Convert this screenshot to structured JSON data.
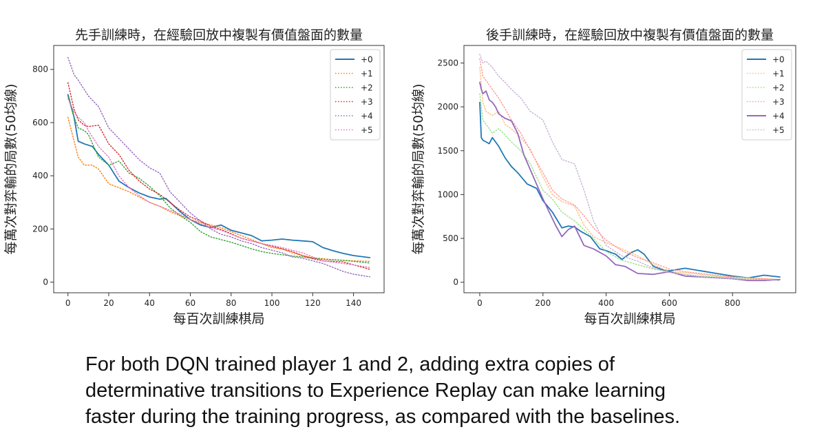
{
  "caption": {
    "line1": "For both DQN trained player 1 and 2, adding extra copies of",
    "line2": "determinative transitions to Experience Replay can make learning",
    "line3": "faster during the training progress, as compared with the baselines."
  },
  "chart_data": [
    {
      "type": "line",
      "title": "先手訓練時，在經驗回放中複製有價值盤面的數量",
      "xlabel": "每百次訓練棋局",
      "ylabel": "每萬次對弈輸的局數(50均線)",
      "xlim": [
        -7,
        155
      ],
      "ylim": [
        -40,
        890
      ],
      "xticks": [
        0,
        20,
        40,
        60,
        80,
        100,
        120,
        140
      ],
      "yticks": [
        0,
        200,
        400,
        600,
        800
      ],
      "legend_position": "top-right",
      "grid": false,
      "series": [
        {
          "name": "+0",
          "color": "#1f77b4",
          "style": "solid",
          "x": [
            0,
            3,
            5,
            8,
            12,
            15,
            20,
            25,
            30,
            35,
            40,
            45,
            48,
            55,
            60,
            65,
            70,
            75,
            80,
            85,
            90,
            95,
            100,
            105,
            110,
            115,
            120,
            125,
            130,
            135,
            140,
            148
          ],
          "y": [
            705,
            620,
            530,
            520,
            510,
            480,
            440,
            380,
            355,
            335,
            320,
            312,
            315,
            265,
            235,
            215,
            205,
            215,
            195,
            185,
            175,
            155,
            158,
            162,
            158,
            155,
            152,
            130,
            118,
            108,
            100,
            92
          ]
        },
        {
          "name": "+1",
          "color": "#ff7f0e",
          "style": "dotted",
          "x": [
            0,
            2,
            5,
            8,
            12,
            15,
            20,
            25,
            30,
            35,
            40,
            45,
            50,
            55,
            60,
            65,
            70,
            75,
            80,
            85,
            90,
            95,
            100,
            105,
            110,
            115,
            120,
            125,
            130,
            135,
            140,
            148
          ],
          "y": [
            620,
            560,
            470,
            440,
            440,
            425,
            370,
            355,
            340,
            320,
            300,
            285,
            265,
            250,
            235,
            225,
            215,
            205,
            190,
            175,
            160,
            145,
            130,
            125,
            110,
            100,
            92,
            88,
            84,
            82,
            80,
            78
          ]
        },
        {
          "name": "+2",
          "color": "#2ca02c",
          "style": "dotted",
          "x": [
            0,
            3,
            5,
            8,
            10,
            15,
            20,
            25,
            30,
            35,
            40,
            45,
            50,
            55,
            60,
            65,
            70,
            75,
            80,
            85,
            90,
            95,
            100,
            105,
            110,
            115,
            120,
            125,
            130,
            135,
            140,
            148
          ],
          "y": [
            700,
            620,
            580,
            570,
            555,
            470,
            440,
            455,
            410,
            390,
            360,
            325,
            280,
            250,
            225,
            190,
            170,
            160,
            150,
            138,
            125,
            115,
            108,
            103,
            98,
            95,
            90,
            86,
            84,
            82,
            78,
            72
          ]
        },
        {
          "name": "+3",
          "color": "#d62728",
          "style": "dotted",
          "x": [
            0,
            3,
            5,
            8,
            10,
            15,
            20,
            25,
            30,
            35,
            40,
            45,
            50,
            55,
            60,
            65,
            70,
            75,
            80,
            85,
            90,
            95,
            100,
            105,
            110,
            115,
            120,
            125,
            130,
            135,
            140,
            148
          ],
          "y": [
            750,
            650,
            610,
            590,
            585,
            590,
            520,
            480,
            420,
            380,
            350,
            330,
            300,
            270,
            245,
            230,
            210,
            198,
            182,
            165,
            155,
            145,
            135,
            125,
            115,
            100,
            88,
            80,
            78,
            76,
            65,
            48
          ]
        },
        {
          "name": "+4",
          "color": "#9467bd",
          "style": "dotted",
          "x": [
            0,
            3,
            5,
            10,
            15,
            20,
            25,
            30,
            35,
            40,
            45,
            50,
            55,
            60,
            65,
            70,
            75,
            80,
            85,
            90,
            95,
            100,
            105,
            110,
            115,
            120,
            125,
            130,
            135,
            140,
            148
          ],
          "y": [
            845,
            780,
            760,
            700,
            660,
            580,
            540,
            500,
            460,
            430,
            410,
            340,
            300,
            260,
            230,
            200,
            180,
            170,
            155,
            145,
            130,
            120,
            110,
            95,
            90,
            80,
            70,
            55,
            40,
            30,
            20
          ]
        },
        {
          "name": "+5",
          "color": "#e377c2",
          "style": "dotted",
          "x": [
            0,
            3,
            5,
            8,
            10,
            15,
            20,
            25,
            30,
            35,
            40,
            45,
            50,
            55,
            60,
            65,
            70,
            75,
            80,
            85,
            90,
            95,
            100,
            105,
            110,
            115,
            120,
            125,
            130,
            135,
            140,
            148
          ],
          "y": [
            690,
            640,
            620,
            600,
            570,
            510,
            470,
            400,
            355,
            325,
            300,
            285,
            270,
            255,
            235,
            220,
            205,
            195,
            180,
            165,
            155,
            145,
            138,
            130,
            120,
            110,
            95,
            80,
            75,
            70,
            65,
            55
          ]
        }
      ]
    },
    {
      "type": "line",
      "title": "後手訓練時，在經驗回放中複製有價值盤面的數量",
      "xlabel": "每百次訓練棋局",
      "ylabel": "每萬次對弈輸的局數(50均線)",
      "xlim": [
        -50,
        1000
      ],
      "ylim": [
        -120,
        2700
      ],
      "xticks": [
        0,
        200,
        400,
        600,
        800
      ],
      "yticks": [
        0,
        500,
        1000,
        1500,
        2000,
        2500
      ],
      "legend_position": "top-right",
      "grid": false,
      "series": [
        {
          "name": "+0",
          "color": "#1f77b4",
          "style": "solid",
          "x": [
            0,
            5,
            10,
            20,
            30,
            40,
            50,
            60,
            80,
            100,
            120,
            150,
            180,
            200,
            230,
            260,
            280,
            300,
            320,
            350,
            380,
            400,
            430,
            450,
            480,
            500,
            520,
            550,
            580,
            600,
            650,
            700,
            750,
            800,
            850,
            900,
            950
          ],
          "y": [
            2050,
            1650,
            1620,
            1600,
            1580,
            1650,
            1600,
            1550,
            1420,
            1320,
            1250,
            1120,
            1070,
            930,
            800,
            620,
            640,
            630,
            580,
            520,
            380,
            360,
            320,
            260,
            340,
            370,
            320,
            180,
            140,
            130,
            160,
            130,
            100,
            70,
            50,
            80,
            60
          ]
        },
        {
          "name": "+1",
          "color": "#ffbb78",
          "style": "dotted",
          "x": [
            0,
            10,
            20,
            40,
            60,
            80,
            100,
            130,
            160,
            200,
            230,
            260,
            300,
            330,
            360,
            400,
            450,
            500,
            550,
            600,
            650,
            700,
            750,
            800,
            850,
            900,
            950
          ],
          "y": [
            2450,
            2050,
            1950,
            1900,
            1950,
            1800,
            1750,
            1650,
            1520,
            1200,
            1000,
            920,
            870,
            650,
            520,
            450,
            380,
            300,
            200,
            120,
            110,
            90,
            70,
            60,
            50,
            40,
            30
          ]
        },
        {
          "name": "+2",
          "color": "#98df8a",
          "style": "dotted",
          "x": [
            0,
            10,
            20,
            40,
            60,
            80,
            100,
            130,
            160,
            200,
            230,
            260,
            300,
            330,
            360,
            400,
            450,
            500,
            550,
            600,
            650,
            700,
            750,
            800,
            850,
            900,
            950
          ],
          "y": [
            2150,
            1850,
            1800,
            1700,
            1750,
            1680,
            1600,
            1500,
            1350,
            1050,
            950,
            800,
            700,
            600,
            500,
            350,
            250,
            200,
            150,
            120,
            90,
            70,
            60,
            50,
            40,
            30,
            20
          ]
        },
        {
          "name": "+3",
          "color": "#ff9896",
          "style": "dotted",
          "x": [
            0,
            10,
            20,
            40,
            60,
            80,
            100,
            130,
            160,
            200,
            230,
            260,
            300,
            330,
            360,
            400,
            450,
            500,
            550,
            600,
            650,
            700,
            750,
            800,
            850,
            900,
            950
          ],
          "y": [
            2550,
            2350,
            2300,
            2200,
            2100,
            1980,
            1850,
            1700,
            1500,
            1250,
            1050,
            950,
            880,
            760,
            620,
            480,
            360,
            280,
            220,
            150,
            120,
            100,
            80,
            60,
            50,
            40,
            30
          ]
        },
        {
          "name": "+4",
          "color": "#9467bd",
          "style": "solid",
          "x": [
            0,
            5,
            10,
            20,
            30,
            40,
            50,
            60,
            80,
            100,
            120,
            140,
            170,
            200,
            220,
            240,
            260,
            280,
            300,
            330,
            360,
            400,
            430,
            460,
            500,
            550,
            600,
            650,
            700,
            750,
            800,
            850,
            900,
            950
          ],
          "y": [
            2280,
            2200,
            2150,
            2180,
            2080,
            2050,
            2000,
            1920,
            1870,
            1840,
            1700,
            1450,
            1200,
            950,
            800,
            650,
            520,
            600,
            640,
            420,
            380,
            300,
            200,
            180,
            100,
            90,
            120,
            70,
            60,
            50,
            40,
            20,
            20,
            30
          ]
        },
        {
          "name": "+5",
          "color": "#c5b0d5",
          "style": "dotted",
          "x": [
            0,
            10,
            20,
            40,
            60,
            80,
            100,
            130,
            160,
            200,
            230,
            260,
            300,
            330,
            360,
            400,
            450,
            500,
            550,
            600,
            650,
            700,
            750,
            800,
            850,
            900,
            950
          ],
          "y": [
            2600,
            2500,
            2520,
            2450,
            2350,
            2280,
            2200,
            2100,
            1950,
            1850,
            1600,
            1400,
            1350,
            1050,
            700,
            420,
            300,
            240,
            160,
            110,
            90,
            60,
            50,
            40,
            30,
            30,
            20
          ]
        }
      ]
    }
  ]
}
